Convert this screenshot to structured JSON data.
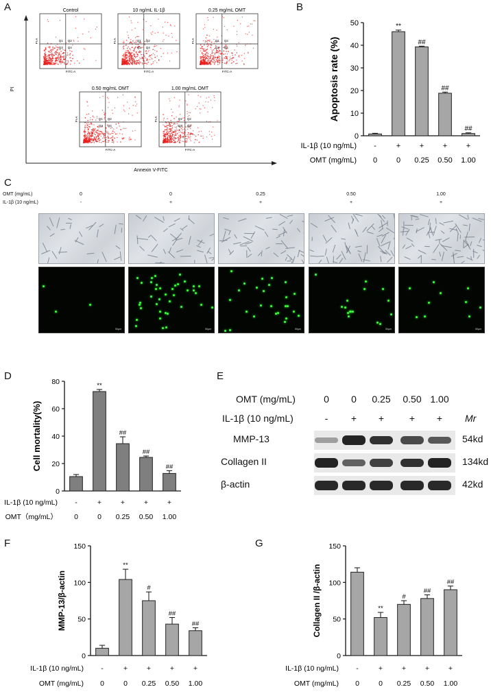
{
  "panels": {
    "A": {
      "letter": "A",
      "y_axis_label": "PI",
      "x_axis_label": "Annexin V-FITC",
      "plots": [
        {
          "title": "Control",
          "q": [
            "Q1",
            "Q2",
            "Q3",
            "Q4"
          ],
          "axis_x": "FITC-A",
          "axis_y": "PI-A"
        },
        {
          "title": "10 ng/mL IL-1β",
          "q": [
            "Q1",
            "Q2",
            "Q3",
            "Q4"
          ],
          "axis_x": "FITC-A",
          "axis_y": "PI-A"
        },
        {
          "title": "0.25 mg/mL OMT",
          "q": [
            "Q1",
            "Q2",
            "Q3",
            "Q4"
          ],
          "axis_x": "FITC-A",
          "axis_y": "PI-A"
        },
        {
          "title": "0.50 mg/mL OMT",
          "q": [
            "Q1",
            "Q2",
            "Q3",
            "Q4"
          ],
          "axis_x": "FITC-A",
          "axis_y": "PI-A"
        },
        {
          "title": "1.00 mg/mL OMT",
          "q": [
            "Q1",
            "Q2",
            "Q3",
            "Q4"
          ],
          "axis_x": "FITC-A",
          "axis_y": "PI-A"
        }
      ]
    },
    "B": {
      "letter": "B"
    },
    "C": {
      "letter": "C",
      "omt_label": "OMT (mg/mL)",
      "il_label": "IL-1β (10 ng/mL)",
      "omt_values": [
        "0",
        "0",
        "0.25",
        "0.50",
        "1.00"
      ],
      "il_values": [
        "-",
        "+",
        "+",
        "+",
        "+"
      ],
      "scale_text": "50μm"
    },
    "D": {
      "letter": "D"
    },
    "E": {
      "letter": "E",
      "omt_label": "OMT (mg/mL)",
      "il_label": "IL-1β (10 ng/mL)",
      "omt_values": [
        "0",
        "0",
        "0.25",
        "0.50",
        "1.00"
      ],
      "il_values": [
        "-",
        "+",
        "+",
        "+",
        "+"
      ],
      "mr_label": "Mr",
      "rows": [
        {
          "name": "MMP-13",
          "mw": "54kd",
          "intensity": [
            0.15,
            0.95,
            0.85,
            0.7,
            0.6
          ]
        },
        {
          "name": "Collagen II",
          "mw": "134kd",
          "intensity": [
            0.95,
            0.55,
            0.75,
            0.85,
            0.95
          ]
        },
        {
          "name": "β-actin",
          "mw": "42kd",
          "intensity": [
            0.9,
            0.9,
            0.9,
            0.9,
            0.9
          ]
        }
      ]
    },
    "F": {
      "letter": "F"
    },
    "G": {
      "letter": "G"
    }
  },
  "chart_data": [
    {
      "id": "B",
      "type": "bar",
      "ylabel": "Apoptosis rate (%)",
      "ylim": [
        0,
        50
      ],
      "yticks": [
        0,
        10,
        20,
        30,
        40,
        50
      ],
      "values": [
        0.8,
        46,
        39.3,
        18.8,
        1.0
      ],
      "errors": [
        0.3,
        0.7,
        0.3,
        0.5,
        0.3
      ],
      "annotations": [
        "",
        "**",
        "##",
        "##",
        "##"
      ],
      "row_labels": [
        "IL-1β (10 ng/mL)",
        "OMT (mg/mL)"
      ],
      "rows": [
        [
          "-",
          "+",
          "+",
          "+",
          "+"
        ],
        [
          "0",
          "0",
          "0.25",
          "0.50",
          "1.00"
        ]
      ],
      "bar_color": "#a6a6a6"
    },
    {
      "id": "D",
      "type": "bar",
      "ylabel": "Cell mortality(%)",
      "ylim": [
        0,
        80
      ],
      "yticks": [
        0,
        20,
        40,
        60,
        80
      ],
      "values": [
        10.5,
        72.5,
        34.5,
        24.5,
        12.8
      ],
      "errors": [
        1.5,
        1.5,
        5.0,
        1.0,
        2.0
      ],
      "annotations": [
        "",
        "**",
        "##",
        "##",
        "##"
      ],
      "row_labels": [
        "IL-1β (10 ng/mL)",
        "OMT（mg/mL）"
      ],
      "rows": [
        [
          "-",
          "+",
          "+",
          "+",
          "+"
        ],
        [
          "0",
          "0",
          "0.25",
          "0.50",
          "1.00"
        ]
      ],
      "bar_color": "#7f7f7f"
    },
    {
      "id": "F",
      "type": "bar",
      "ylabel": "MMP-13/β-actin",
      "ylim": [
        0,
        150
      ],
      "yticks": [
        0,
        50,
        100,
        150
      ],
      "values": [
        10,
        104,
        75,
        43,
        34
      ],
      "errors": [
        4,
        14,
        12,
        9,
        4
      ],
      "annotations": [
        "",
        "**",
        "#",
        "##",
        "##"
      ],
      "row_labels": [
        "IL-1β (10 ng/mL)",
        "OMT (mg/mL)"
      ],
      "rows": [
        [
          "-",
          "+",
          "+",
          "+",
          "+"
        ],
        [
          "0",
          "0",
          "0.25",
          "0.50",
          "1.00"
        ]
      ],
      "bar_color": "#a6a6a6"
    },
    {
      "id": "G",
      "type": "bar",
      "ylabel": "Collagen II /β-actin",
      "ylim": [
        0,
        150
      ],
      "yticks": [
        0,
        50,
        100,
        150
      ],
      "values": [
        114,
        52,
        70,
        78,
        90
      ],
      "errors": [
        6,
        7,
        5,
        5,
        5
      ],
      "annotations": [
        "",
        "**",
        "#",
        "##",
        "##"
      ],
      "row_labels": [
        "IL-1β (10 ng/mL)",
        "OMT (mg/mL)"
      ],
      "rows": [
        [
          "-",
          "+",
          "+",
          "+",
          "+"
        ],
        [
          "0",
          "0",
          "0.25",
          "0.50",
          "1.00"
        ]
      ],
      "bar_color": "#a6a6a6"
    }
  ]
}
